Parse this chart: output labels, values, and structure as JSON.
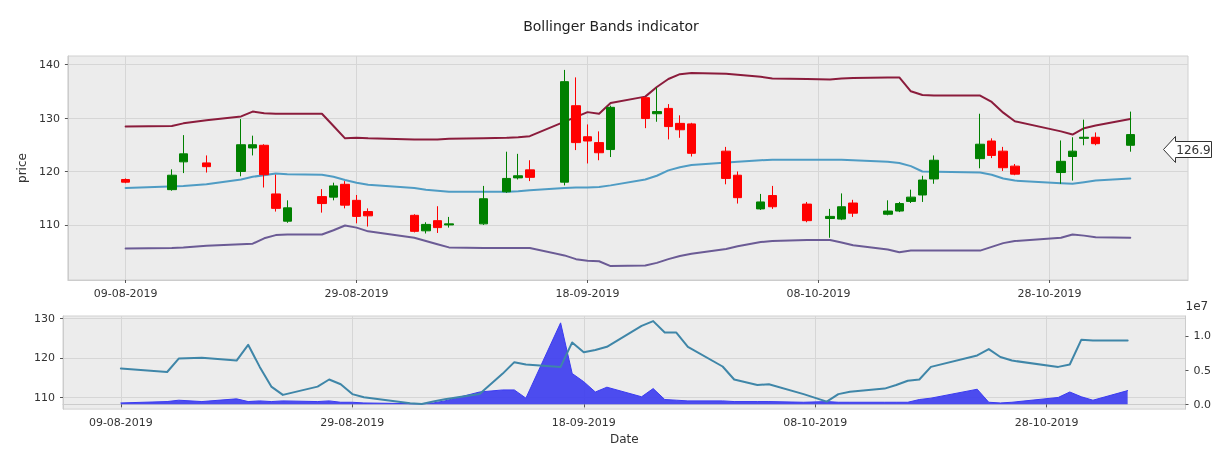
{
  "chart_data": [
    {
      "type": "candlestick",
      "title": "Bollinger Bands indicator",
      "ylabel": "price",
      "x": [
        "2019-08-09",
        "2019-08-13",
        "2019-08-14",
        "2019-08-16",
        "2019-08-19",
        "2019-08-20",
        "2019-08-21",
        "2019-08-22",
        "2019-08-23",
        "2019-08-26",
        "2019-08-27",
        "2019-08-28",
        "2019-08-29",
        "2019-08-30",
        "2019-09-03",
        "2019-09-04",
        "2019-09-05",
        "2019-09-06",
        "2019-09-09",
        "2019-09-11",
        "2019-09-12",
        "2019-09-13",
        "2019-09-16",
        "2019-09-17",
        "2019-09-18",
        "2019-09-19",
        "2019-09-20",
        "2019-09-23",
        "2019-09-24",
        "2019-09-25",
        "2019-09-26",
        "2019-09-27",
        "2019-09-30",
        "2019-10-01",
        "2019-10-03",
        "2019-10-04",
        "2019-10-07",
        "2019-10-09",
        "2019-10-10",
        "2019-10-11",
        "2019-10-14",
        "2019-10-15",
        "2019-10-16",
        "2019-10-17",
        "2019-10-18",
        "2019-10-22",
        "2019-10-23",
        "2019-10-24",
        "2019-10-25",
        "2019-10-29",
        "2019-10-30",
        "2019-10-31",
        "2019-11-01",
        "2019-11-04"
      ],
      "series": [
        {
          "type": "line",
          "color": "#8b1c3c",
          "values": [
            128.4,
            128.5,
            129.0,
            129.6,
            130.3,
            131.2,
            130.9,
            130.8,
            130.8,
            130.8,
            128.5,
            126.2,
            126.3,
            126.2,
            126.0,
            126.0,
            126.0,
            126.1,
            126.2,
            126.3,
            126.4,
            126.6,
            null,
            null,
            131.1,
            130.8,
            132.8,
            134.0,
            135.8,
            137.3,
            138.2,
            138.4,
            138.3,
            138.1,
            137.7,
            137.4,
            137.3,
            137.2,
            137.4,
            137.5,
            137.6,
            137.6,
            135.0,
            134.3,
            134.2,
            134.2,
            133.0,
            131.0,
            129.4,
            127.5,
            126.9,
            128.1,
            128.6,
            129.8
          ]
        },
        {
          "type": "line",
          "color": "#4f9cc4",
          "values": [
            116.9,
            null,
            117.3,
            117.6,
            118.5,
            119.0,
            null,
            119.6,
            119.5,
            119.4,
            119.0,
            118.4,
            117.9,
            117.5,
            116.9,
            116.6,
            116.4,
            116.2,
            116.2,
            116.2,
            116.3,
            116.5,
            116.9,
            117.0,
            117.0,
            117.1,
            117.4,
            118.5,
            119.2,
            120.2,
            120.8,
            121.2,
            null,
            121.8,
            122.1,
            122.2,
            122.2,
            122.2,
            122.2,
            122.1,
            121.8,
            121.6,
            121.0,
            120.0,
            null,
            119.8,
            119.4,
            118.7,
            118.3,
            117.8,
            117.7,
            118.0,
            118.3,
            118.7
          ]
        },
        {
          "type": "line",
          "color": "#6b5b95",
          "values": [
            105.6,
            105.7,
            105.8,
            106.1,
            106.4,
            106.5,
            107.5,
            108.1,
            108.2,
            108.2,
            109.0,
            109.9,
            109.5,
            108.8,
            107.6,
            107.0,
            106.4,
            105.8,
            105.7,
            105.7,
            105.7,
            105.7,
            104.3,
            103.6,
            103.3,
            103.2,
            102.3,
            102.4,
            102.9,
            103.6,
            104.2,
            104.6,
            105.5,
            106.0,
            106.8,
            107.0,
            107.2,
            107.2,
            106.7,
            106.2,
            105.4,
            104.9,
            105.2,
            105.2,
            105.2,
            105.2,
            105.9,
            106.6,
            107.0,
            107.6,
            108.2,
            108.0,
            107.7,
            107.6
          ]
        },
        {
          "ohlc": [
            [
              118.5,
              118.7,
              117.8,
              118.0
            ],
            [
              116.6,
              120.4,
              116.4,
              119.3
            ],
            [
              121.8,
              126.8,
              119.7,
              123.3
            ],
            [
              121.6,
              123.0,
              119.8,
              120.9
            ],
            [
              120.0,
              129.8,
              119.1,
              125.0
            ],
            [
              124.4,
              126.7,
              123.0,
              125.0
            ],
            [
              124.9,
              125.1,
              117.0,
              119.4
            ],
            [
              115.8,
              119.4,
              112.5,
              113.1
            ],
            [
              110.7,
              114.6,
              110.4,
              113.2
            ],
            [
              115.3,
              116.7,
              112.3,
              114.0
            ],
            [
              115.2,
              117.9,
              114.6,
              117.3
            ],
            [
              117.6,
              118.2,
              113.1,
              113.7
            ],
            [
              114.6,
              115.6,
              110.3,
              111.6
            ],
            [
              112.5,
              113.1,
              109.7,
              111.7
            ],
            [
              111.8,
              112.0,
              108.6,
              108.8
            ],
            [
              108.9,
              110.5,
              108.4,
              110.1
            ],
            [
              110.8,
              113.5,
              108.5,
              109.5
            ],
            [
              110.0,
              111.5,
              109.5,
              110.2
            ],
            [
              110.2,
              117.3,
              110.0,
              114.9
            ],
            [
              116.2,
              123.7,
              116.0,
              118.7
            ],
            [
              118.8,
              123.3,
              118.5,
              119.2
            ],
            [
              120.3,
              122.1,
              118.2,
              118.9
            ],
            [
              118.0,
              139.0,
              117.4,
              136.8
            ],
            [
              132.3,
              137.6,
              124.0,
              125.4
            ],
            [
              126.5,
              128.8,
              121.5,
              125.7
            ],
            [
              125.4,
              127.5,
              122.1,
              123.5
            ],
            [
              124.1,
              132.3,
              122.7,
              132.0
            ],
            [
              133.8,
              133.9,
              128.1,
              129.9
            ],
            [
              130.8,
              135.7,
              129.3,
              131.2
            ],
            [
              131.8,
              132.6,
              126.0,
              128.4
            ],
            [
              129.0,
              130.5,
              126.3,
              127.8
            ],
            [
              128.9,
              129.1,
              122.8,
              123.4
            ],
            [
              123.8,
              124.6,
              117.6,
              118.7
            ],
            [
              119.3,
              120.0,
              114.0,
              115.1
            ],
            [
              113.0,
              115.8,
              112.8,
              114.3
            ],
            [
              115.5,
              117.3,
              113.0,
              113.4
            ],
            [
              113.9,
              114.3,
              110.5,
              110.8
            ],
            [
              111.2,
              113.0,
              107.6,
              111.6
            ],
            [
              111.1,
              115.9,
              110.9,
              113.4
            ],
            [
              114.1,
              114.7,
              111.5,
              112.2
            ],
            [
              112.0,
              114.6,
              111.8,
              112.6
            ],
            [
              112.6,
              114.3,
              112.4,
              114.0
            ],
            [
              114.4,
              116.6,
              114.1,
              115.2
            ],
            [
              115.6,
              119.2,
              114.3,
              118.4
            ],
            [
              118.6,
              123.0,
              117.7,
              122.1
            ],
            [
              122.4,
              130.8,
              120.6,
              125.1
            ],
            [
              125.7,
              126.2,
              122.5,
              123.0
            ],
            [
              123.8,
              124.6,
              120.1,
              120.7
            ],
            [
              121.0,
              121.4,
              119.3,
              119.5
            ],
            [
              119.8,
              125.8,
              117.7,
              121.9
            ],
            [
              122.8,
              126.4,
              118.3,
              123.8
            ],
            [
              126.2,
              129.7,
              124.9,
              126.4
            ],
            [
              126.4,
              127.3,
              124.9,
              125.2
            ],
            [
              124.9,
              131.2,
              123.7,
              126.9
            ]
          ],
          "colors": [
            "#ff0000",
            "#008000",
            "#008000",
            "#ff0000",
            "#008000",
            "#008000",
            "#ff0000",
            "#ff0000",
            "#008000",
            "#ff0000",
            "#008000",
            "#ff0000",
            "#ff0000",
            "#ff0000",
            "#ff0000",
            "#008000",
            "#ff0000",
            "#008000",
            "#008000",
            "#008000",
            "#008000",
            "#ff0000",
            "#008000",
            "#ff0000",
            "#ff0000",
            "#ff0000",
            "#008000",
            "#ff0000",
            "#008000",
            "#ff0000",
            "#ff0000",
            "#ff0000",
            "#ff0000",
            "#ff0000",
            "#008000",
            "#ff0000",
            "#ff0000",
            "#008000",
            "#008000",
            "#ff0000",
            "#008000",
            "#008000",
            "#008000",
            "#008000",
            "#008000",
            "#008000",
            "#ff0000",
            "#ff0000",
            "#ff0000",
            "#008000",
            "#008000",
            "#008000",
            "#ff0000",
            "#008000"
          ]
        }
      ],
      "annotations": [
        "126.9"
      ],
      "xlim": [
        "2019-08-04",
        "2019-11-09"
      ],
      "xticks": [
        {
          "value": "2019-08-09",
          "label": "09-08-2019"
        },
        {
          "value": "2019-08-29",
          "label": "29-08-2019"
        },
        {
          "value": "2019-09-18",
          "label": "18-09-2019"
        },
        {
          "value": "2019-10-08",
          "label": "08-10-2019"
        },
        {
          "value": "2019-10-28",
          "label": "28-10-2019"
        }
      ],
      "ylim": [
        99.7,
        141.6
      ],
      "yticks": [
        110,
        120,
        130,
        140
      ],
      "grid": true,
      "marker": "none",
      "line_style": "solid"
    },
    {
      "type": "line",
      "xlabel": "Date",
      "y2label": "1e7",
      "x": [
        "2019-08-09",
        "2019-08-13",
        "2019-08-14",
        "2019-08-16",
        "2019-08-19",
        "2019-08-20",
        "2019-08-21",
        "2019-08-22",
        "2019-08-23",
        "2019-08-26",
        "2019-08-27",
        "2019-08-28",
        "2019-08-29",
        "2019-08-30",
        "2019-09-03",
        "2019-09-04",
        "2019-09-05",
        "2019-09-06",
        "2019-09-09",
        "2019-09-11",
        "2019-09-12",
        "2019-09-13",
        "2019-09-16",
        "2019-09-17",
        "2019-09-18",
        "2019-09-19",
        "2019-09-20",
        "2019-09-23",
        "2019-09-24",
        "2019-09-25",
        "2019-09-26",
        "2019-09-27",
        "2019-09-30",
        "2019-10-01",
        "2019-10-03",
        "2019-10-04",
        "2019-10-07",
        "2019-10-09",
        "2019-10-10",
        "2019-10-11",
        "2019-10-14",
        "2019-10-15",
        "2019-10-16",
        "2019-10-17",
        "2019-10-18",
        "2019-10-22",
        "2019-10-23",
        "2019-10-24",
        "2019-10-25",
        "2019-10-29",
        "2019-10-30",
        "2019-10-31",
        "2019-11-01",
        "2019-11-04"
      ],
      "series": [
        {
          "type": "area",
          "axis": "y2",
          "color": "#3b3bf0",
          "values": [
            0.02,
            0.04,
            0.06,
            0.04,
            0.08,
            0.04,
            0.05,
            0.04,
            0.05,
            0.04,
            0.05,
            0.03,
            0.03,
            0.02,
            0.01,
            0.01,
            0.02,
            0.05,
            0.18,
            0.21,
            0.21,
            0.09,
            1.19,
            0.45,
            0.33,
            0.18,
            0.25,
            0.11,
            0.23,
            0.07,
            0.06,
            0.05,
            0.05,
            0.04,
            0.04,
            0.04,
            0.03,
            0.04,
            0.03,
            0.03,
            0.03,
            0.03,
            0.03,
            0.07,
            0.09,
            0.22,
            0.03,
            0.02,
            0.03,
            0.1,
            0.18,
            0.11,
            0.06,
            0.2
          ]
        },
        {
          "color": "#3f86a8",
          "values": [
            117.3,
            116.4,
            119.8,
            120.0,
            119.3,
            123.3,
            117.7,
            112.7,
            110.6,
            112.7,
            114.5,
            113.3,
            110.8,
            110.0,
            108.5,
            108.3,
            108.9,
            109.5,
            110.8,
            116.0,
            118.9,
            118.3,
            117.7,
            123.9,
            121.4,
            122.0,
            122.8,
            128.1,
            129.3,
            126.4,
            126.4,
            122.8,
            117.8,
            114.5,
            113.1,
            113.3,
            110.8,
            108.9,
            110.8,
            111.4,
            112.2,
            113.1,
            114.2,
            114.5,
            117.7,
            120.6,
            122.2,
            120.2,
            119.3,
            117.7,
            118.3,
            124.6,
            124.4,
            124.4
          ]
        }
      ],
      "xlim": [
        "2019-08-04",
        "2019-11-09"
      ],
      "xticks": [
        {
          "value": "2019-08-09",
          "label": "09-08-2019"
        },
        {
          "value": "2019-08-29",
          "label": "29-08-2019"
        },
        {
          "value": "2019-09-18",
          "label": "18-09-2019"
        },
        {
          "value": "2019-10-08",
          "label": "08-10-2019"
        },
        {
          "value": "2019-10-28",
          "label": "28-10-2019"
        }
      ],
      "ylim": [
        107,
        130.6
      ],
      "yticks": [
        110,
        120,
        130
      ],
      "y2lim": [
        -0.07,
        1.29
      ],
      "y2ticks": [
        {
          "value": 0,
          "label": "0.0"
        },
        {
          "value": 0.5,
          "label": "0.5"
        },
        {
          "value": 1,
          "label": "1.0"
        }
      ],
      "grid": true,
      "marker": "none",
      "line_style": "solid"
    }
  ]
}
